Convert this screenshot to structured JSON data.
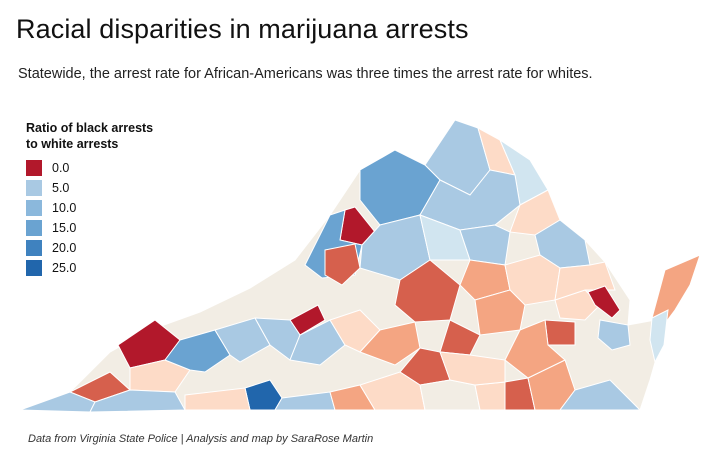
{
  "title": "Racial disparities in marijuana arrests",
  "subtitle": "Statewide, the arrest rate for African-Americans was three times the arrest rate for whites.",
  "legend": {
    "title_line1": "Ratio of black arrests",
    "title_line2": "to white arrests",
    "items": [
      {
        "label": "0.0",
        "color": "#b2182b"
      },
      {
        "label": "5.0",
        "color": "#a9c9e3"
      },
      {
        "label": "10.0",
        "color": "#8bb8dc"
      },
      {
        "label": "15.0",
        "color": "#6aa3d1"
      },
      {
        "label": "20.0",
        "color": "#3f82bf"
      },
      {
        "label": "25.0",
        "color": "#2166ac"
      }
    ]
  },
  "credit": "Data from Virginia State Police | Analysis and map by SaraRose Martin",
  "colors": {
    "dark_red": "#b2182b",
    "red_orange": "#d6604d",
    "orange": "#f4a582",
    "light_peach": "#fddbc7",
    "neutral": "#f2ede4",
    "pale_blue": "#d1e5f0",
    "light_blue": "#a9c9e3",
    "mid_blue": "#6aa3d1",
    "dark_blue": "#2166ac",
    "border": "#ffffff"
  }
}
